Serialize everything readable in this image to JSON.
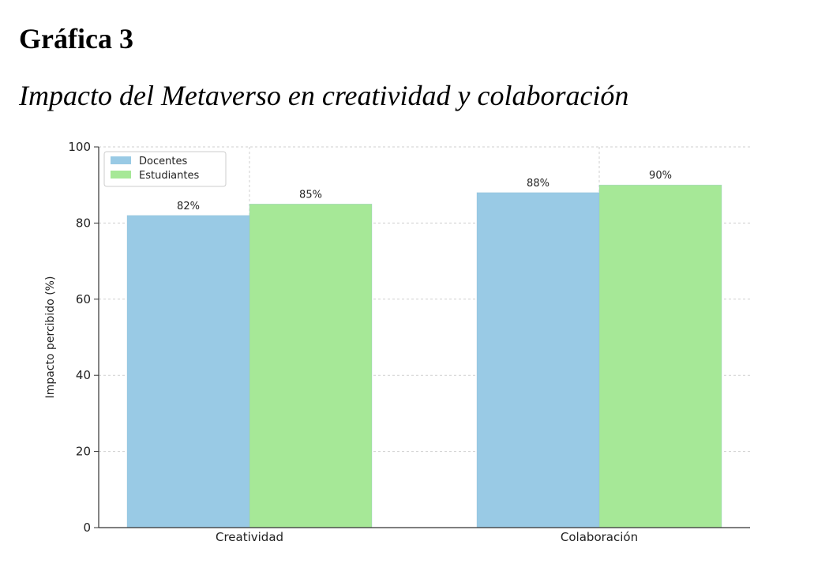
{
  "figure": {
    "label": "Gráfica 3",
    "title": "Impacto del Metaverso en creatividad y colaboración"
  },
  "chart_data": {
    "type": "bar",
    "categories": [
      "Creatividad",
      "Colaboración"
    ],
    "series": [
      {
        "name": "Docentes",
        "values": [
          82,
          88
        ],
        "labels": [
          "82%",
          "88%"
        ],
        "color": "#99cae5"
      },
      {
        "name": "Estudiantes",
        "values": [
          85,
          90
        ],
        "labels": [
          "85%",
          "90%"
        ],
        "color": "#a6e897"
      }
    ],
    "ylabel": "Impacto percibido (%)",
    "ylim": [
      0,
      100
    ],
    "yticks": [
      0,
      20,
      40,
      60,
      80,
      100
    ],
    "grid": true,
    "legend": "top-left"
  }
}
